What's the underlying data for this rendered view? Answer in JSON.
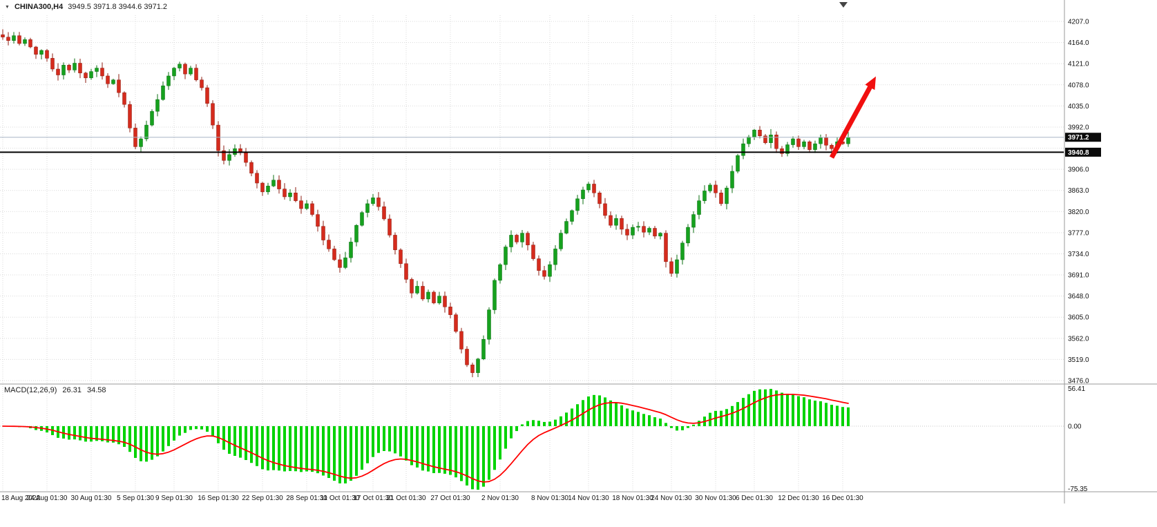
{
  "header": {
    "dropdown_icon": "▼",
    "symbol": "CHINA300,H4",
    "ohlc_text": "3949.5 3971.8 3944.6 3971.2"
  },
  "colors": {
    "bull": "#16a11e",
    "bear": "#d52b1d",
    "bull_stroke": "#0b6f12",
    "bear_stroke": "#8e1c11",
    "grid": "#d9d9d9",
    "macd_histogram": "#00d300",
    "macd_signal": "#ff0000",
    "hline": "#000000",
    "current_price_line": "#a8b6c6",
    "badge_bg": "#0b0b0b",
    "badge_text": "#ffffff",
    "axis_text": "#111111",
    "separator": "#9a9a9a",
    "arrow": "#f10f0f"
  },
  "chart_data": {
    "type": "candlestick",
    "symbol": "CHINA300",
    "timeframe": "H4",
    "title": "CHINA300,H4",
    "ohlc_readout": {
      "open": 3949.5,
      "high": 3971.8,
      "low": 3944.6,
      "close": 3971.2
    },
    "price_axis_ticks": [
      4207,
      4164,
      4121,
      4078,
      4035,
      3992,
      3949,
      3906,
      3863,
      3820,
      3777,
      3734,
      3691,
      3648,
      3605,
      3562,
      3519,
      3476
    ],
    "price_axis_range": [
      3476.0,
      4207.0
    ],
    "current_price": 3971.2,
    "hline_price": 3940.8,
    "first_open": 4180,
    "closes": [
      4175,
      4168,
      4178,
      4162,
      4170,
      4155,
      4140,
      4148,
      4132,
      4110,
      4098,
      4118,
      4108,
      4122,
      4102,
      4092,
      4105,
      4112,
      4096,
      4080,
      4088,
      4062,
      4038,
      3990,
      3952,
      3968,
      3996,
      4024,
      4048,
      4076,
      4096,
      4112,
      4120,
      4100,
      4112,
      4088,
      4072,
      4040,
      3996,
      3944,
      3924,
      3936,
      3948,
      3940,
      3920,
      3898,
      3878,
      3860,
      3872,
      3884,
      3866,
      3850,
      3858,
      3842,
      3826,
      3836,
      3814,
      3790,
      3762,
      3744,
      3722,
      3706,
      3726,
      3758,
      3792,
      3818,
      3836,
      3848,
      3830,
      3805,
      3772,
      3742,
      3714,
      3682,
      3654,
      3668,
      3642,
      3656,
      3634,
      3648,
      3626,
      3610,
      3576,
      3540,
      3508,
      3492,
      3520,
      3560,
      3620,
      3680,
      3712,
      3748,
      3772,
      3758,
      3776,
      3752,
      3724,
      3700,
      3688,
      3712,
      3744,
      3776,
      3800,
      3822,
      3846,
      3864,
      3876,
      3858,
      3836,
      3812,
      3792,
      3806,
      3784,
      3772,
      3788,
      3790,
      3778,
      3786,
      3770,
      3776,
      3718,
      3694,
      3722,
      3756,
      3788,
      3814,
      3842,
      3862,
      3874,
      3858,
      3836,
      3868,
      3902,
      3934,
      3958,
      3972,
      3986,
      3974,
      3960,
      3976,
      3948,
      3938,
      3956,
      3968,
      3952,
      3962,
      3946,
      3958,
      3970,
      3955,
      3948,
      3962,
      3958,
      3971.2
    ],
    "time_labels": [
      "18 Aug 2022",
      "24 Aug 01:30",
      "30 Aug 01:30",
      "5 Sep 01:30",
      "9 Sep 01:30",
      "16 Sep 01:30",
      "22 Sep 01:30",
      "28 Sep 01:30",
      "11 Oct 01:30",
      "17 Oct 01:30",
      "21 Oct 01:30",
      "27 Oct 01:30",
      "2 Nov 01:30",
      "8 Nov 01:30",
      "14 Nov 01:30",
      "18 Nov 01:30",
      "24 Nov 01:30",
      "30 Nov 01:30",
      "6 Dec 01:30",
      "12 Dec 01:30",
      "16 Dec 01:30"
    ],
    "time_label_indices": [
      0,
      8,
      16,
      24,
      31,
      39,
      47,
      55,
      61,
      67,
      73,
      81,
      90,
      99,
      106,
      114,
      121,
      129,
      136,
      144,
      152
    ],
    "macd": {
      "label": "MACD(12,26,9)",
      "main_value": "26.31",
      "signal_value": "34.58",
      "axis_max": "56.41",
      "axis_zero": "0.00",
      "axis_min": "-75.35",
      "fast": 12,
      "slow": 26,
      "signal": 9
    },
    "annotations": [
      {
        "type": "arrow",
        "color": "#f10f0f",
        "from_index": 150,
        "from_price": 3930,
        "to_index": 158,
        "to_price": 4095
      }
    ]
  }
}
